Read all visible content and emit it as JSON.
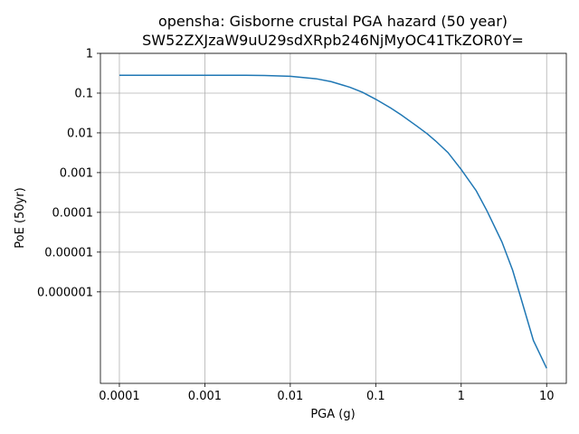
{
  "chart_data": {
    "type": "line",
    "title": "opensha: Gisborne crustal PGA hazard (50 year)",
    "subtitle": "SW52ZXJzaW9uU29sdXRpb246NjMyOC41TkZOR0Y=",
    "xlabel": "PGA (g)",
    "ylabel": "PoE (50yr)",
    "xscale": "log",
    "yscale": "log",
    "xlim": [
      6e-05,
      17
    ],
    "ylim": [
      5e-09,
      1
    ],
    "grid": true,
    "line_color": "#1f77b4",
    "xticks": [
      {
        "value": 0.0001,
        "label": "0.0001"
      },
      {
        "value": 0.001,
        "label": "0.001"
      },
      {
        "value": 0.01,
        "label": "0.01"
      },
      {
        "value": 0.1,
        "label": "0.1"
      },
      {
        "value": 1,
        "label": "1"
      },
      {
        "value": 10,
        "label": "10"
      }
    ],
    "yticks": [
      {
        "value": 1,
        "label": "1"
      },
      {
        "value": 0.1,
        "label": "0.1"
      },
      {
        "value": 0.01,
        "label": "0.01"
      },
      {
        "value": 0.001,
        "label": "0.001"
      },
      {
        "value": 0.0001,
        "label": "0.0001"
      },
      {
        "value": 1e-05,
        "label": "0.00001"
      },
      {
        "value": 1e-06,
        "label": "0.000001"
      }
    ],
    "series": [
      {
        "x": [
          0.0001,
          0.0003,
          0.001,
          0.003,
          0.005,
          0.01,
          0.02,
          0.03,
          0.05,
          0.07,
          0.1,
          0.15,
          0.2,
          0.3,
          0.4,
          0.5,
          0.7,
          1,
          1.5,
          2,
          3,
          4,
          5,
          7,
          10
        ],
        "y": [
          0.28,
          0.28,
          0.28,
          0.28,
          0.278,
          0.265,
          0.23,
          0.195,
          0.14,
          0.105,
          0.07,
          0.042,
          0.028,
          0.015,
          0.0095,
          0.0063,
          0.0032,
          0.0012,
          0.00035,
          0.00011,
          1.8e-05,
          3.5e-06,
          7e-07,
          6e-08,
          1.2e-08
        ]
      }
    ]
  }
}
